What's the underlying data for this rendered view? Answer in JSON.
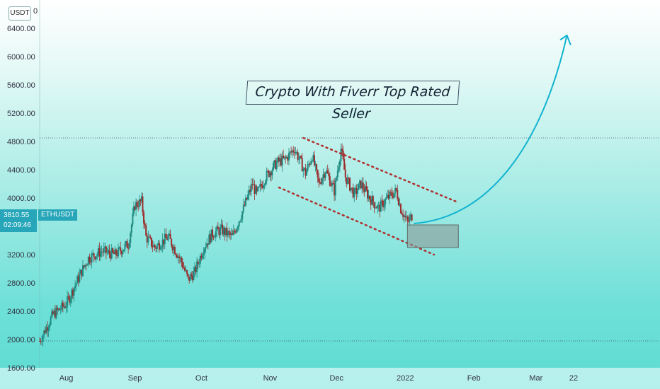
{
  "header": {
    "unit_label": "USDT",
    "unit_zero": "0"
  },
  "price": {
    "last": "3810.55",
    "countdown": "02:09:46",
    "symbol": "ETHUSDT"
  },
  "annotation": {
    "text": "Crypto With Fiverr Top Rated Seller"
  },
  "colors": {
    "candle_up": "#1f8a80",
    "candle_down": "#9b2c2c",
    "channel": "#b03030",
    "arrow": "#12b3d0",
    "zone": "#8e9a97",
    "tag": "#26a6b8"
  },
  "chart_data": {
    "type": "candlestick",
    "ylim": [
      1600,
      6800
    ],
    "y_ticks": [
      "1600.00",
      "2000.00",
      "2400.00",
      "2800.00",
      "3200.00",
      "3600.00",
      "4000.00",
      "4400.00",
      "4800.00",
      "5200.00",
      "5600.00",
      "6000.00",
      "6400.00"
    ],
    "y_tick_values": [
      1600,
      2000,
      2400,
      2800,
      3200,
      3600,
      4000,
      4400,
      4800,
      5200,
      5600,
      6000,
      6400
    ],
    "x_ticks": [
      "Aug",
      "Sep",
      "Oct",
      "Nov",
      "Dec",
      "2022",
      "Feb",
      "Mar",
      "22"
    ],
    "x_tick_days": [
      0,
      31,
      61,
      92,
      122,
      153,
      184,
      212,
      229
    ],
    "xlim_days": [
      -12,
      268
    ],
    "close_series": [
      [
        -12,
        1980
      ],
      [
        -6,
        2350
      ],
      [
        0,
        2500
      ],
      [
        6,
        2900
      ],
      [
        10,
        3150
      ],
      [
        16,
        3250
      ],
      [
        22,
        3200
      ],
      [
        28,
        3350
      ],
      [
        31,
        3900
      ],
      [
        34,
        3950
      ],
      [
        36,
        3450
      ],
      [
        40,
        3300
      ],
      [
        46,
        3450
      ],
      [
        52,
        3100
      ],
      [
        55,
        2850
      ],
      [
        58,
        2950
      ],
      [
        62,
        3300
      ],
      [
        66,
        3500
      ],
      [
        70,
        3550
      ],
      [
        75,
        3450
      ],
      [
        80,
        3850
      ],
      [
        84,
        4200
      ],
      [
        86,
        4050
      ],
      [
        90,
        4300
      ],
      [
        95,
        4500
      ],
      [
        99,
        4550
      ],
      [
        103,
        4700
      ],
      [
        108,
        4350
      ],
      [
        111,
        4600
      ],
      [
        114,
        4200
      ],
      [
        117,
        4400
      ],
      [
        121,
        4100
      ],
      [
        124,
        4700
      ],
      [
        126,
        4300
      ],
      [
        130,
        4050
      ],
      [
        133,
        4200
      ],
      [
        137,
        4000
      ],
      [
        141,
        3850
      ],
      [
        145,
        4000
      ],
      [
        149,
        4100
      ],
      [
        151,
        3850
      ],
      [
        154,
        3650
      ],
      [
        156,
        3750
      ]
    ],
    "horizontal_levels": [
      4850,
      1980
    ],
    "channel_upper": [
      [
        107,
        4850
      ],
      [
        176,
        3950
      ]
    ],
    "channel_lower": [
      [
        96,
        4150
      ],
      [
        166,
        3200
      ]
    ],
    "target_zone": {
      "x": [
        154,
        177
      ],
      "y": [
        3300,
        3620
      ]
    },
    "projection_arrow": {
      "from": [
        157,
        3640
      ],
      "to": [
        226,
        6300
      ]
    }
  }
}
